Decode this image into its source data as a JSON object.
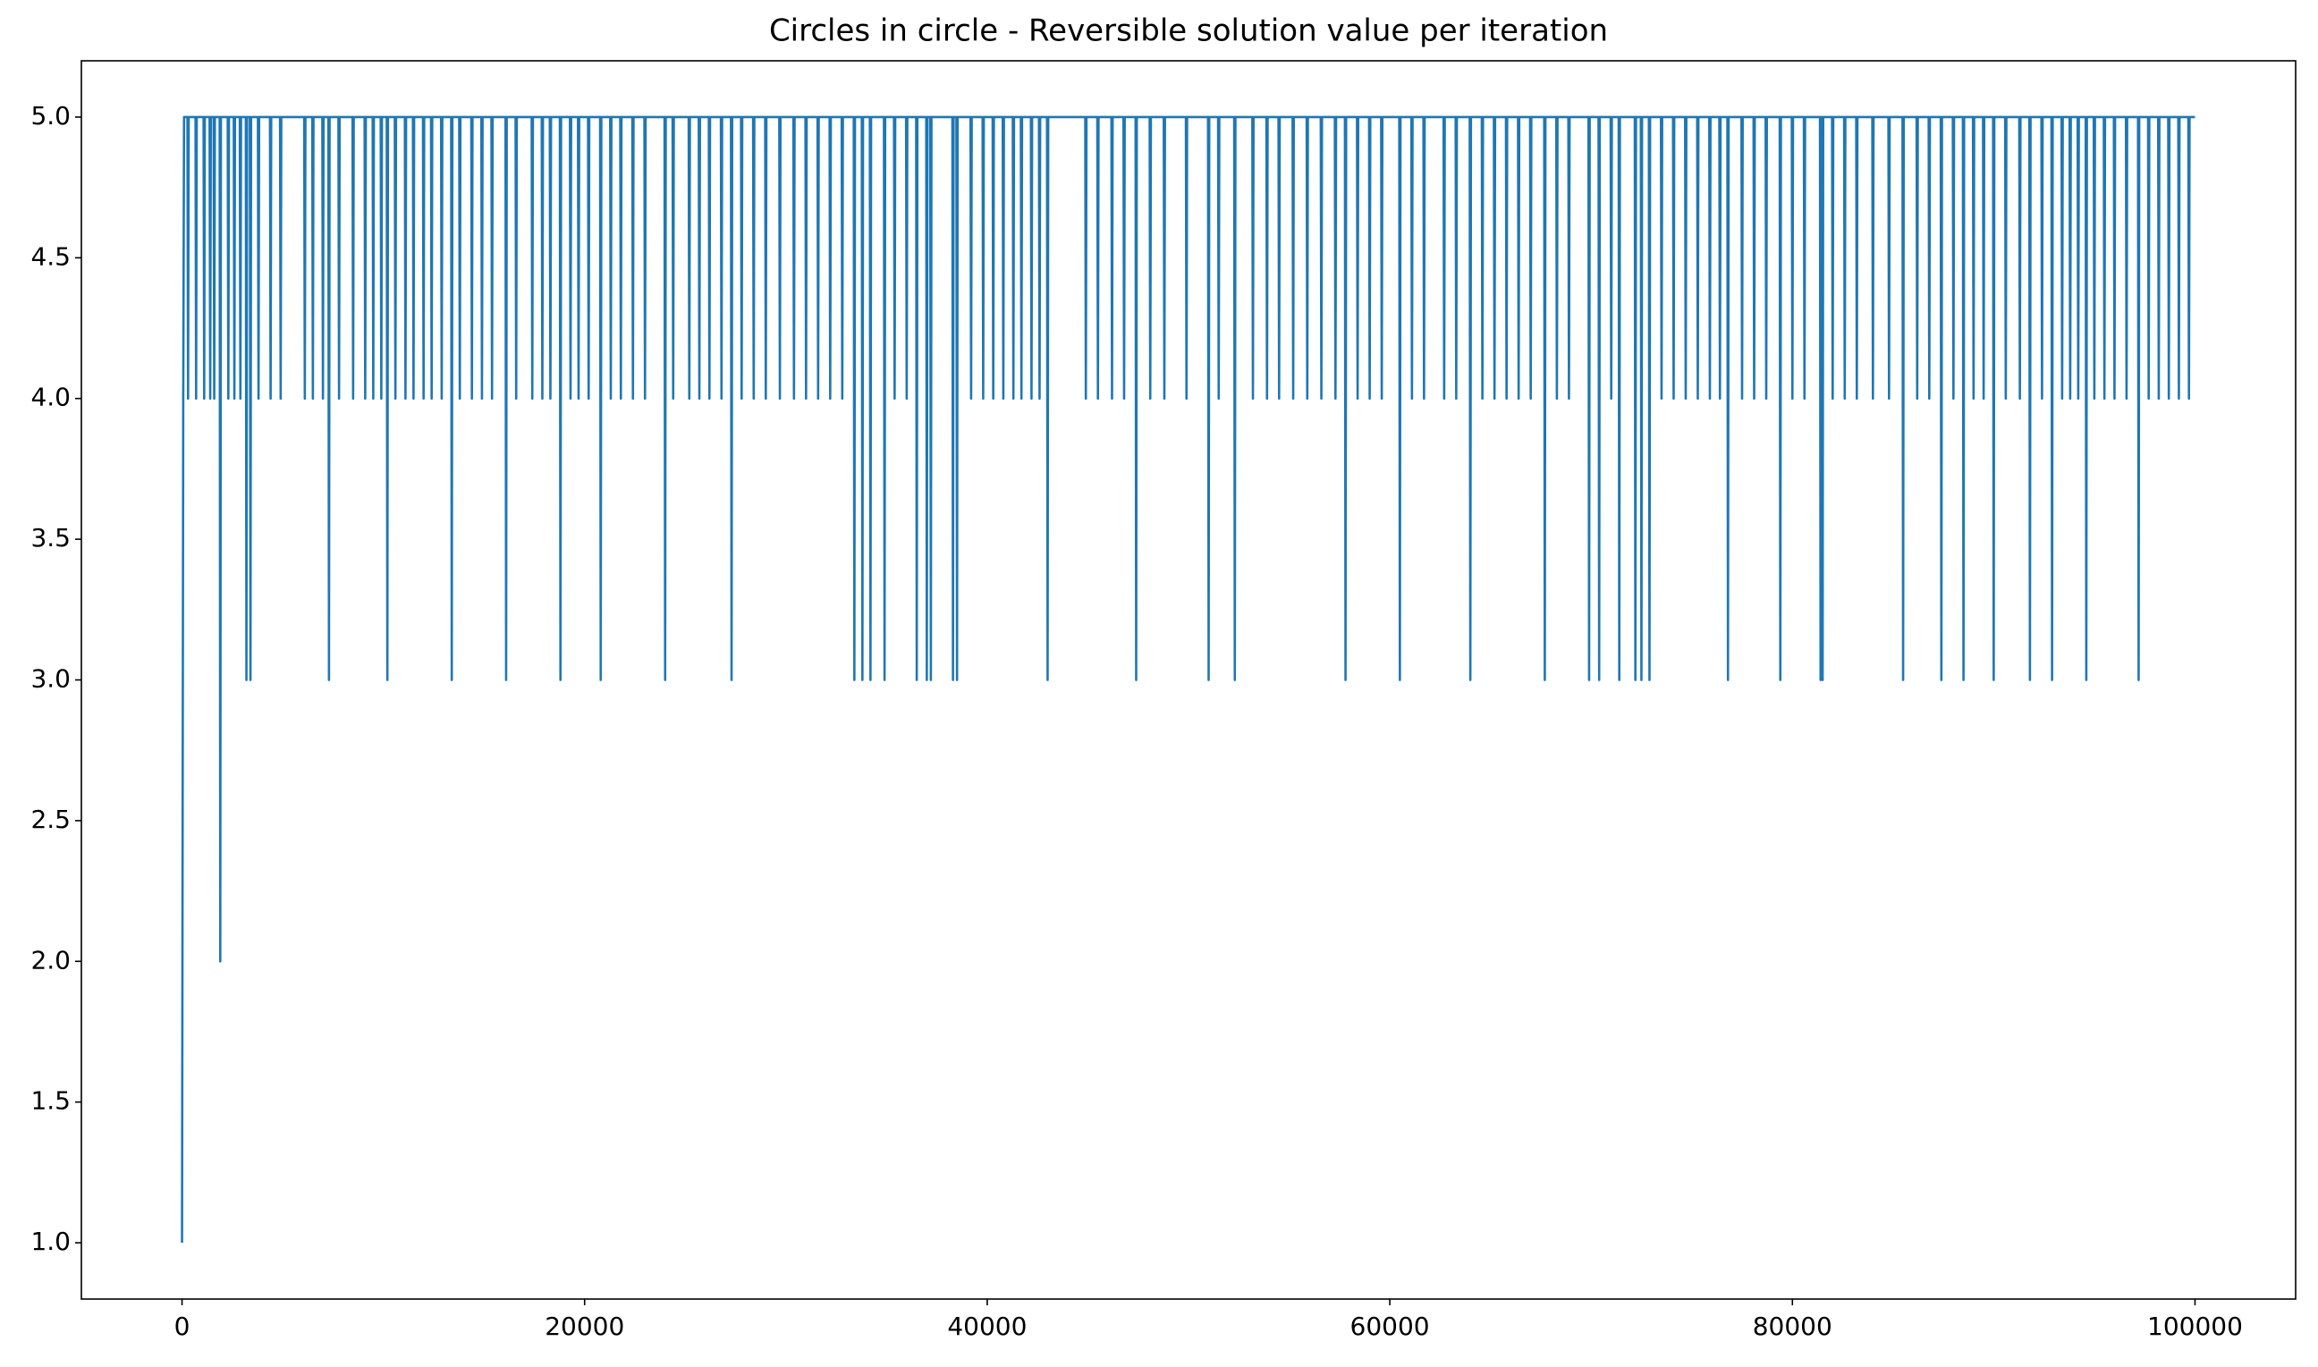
{
  "chart_data": {
    "type": "line",
    "title": "Circles in circle - Reversible solution value per iteration",
    "xlim": [
      -5000,
      105000
    ],
    "xticks": [
      0,
      20000,
      40000,
      60000,
      80000,
      100000
    ],
    "ylim": [
      0.8,
      5.2
    ],
    "yticks": [
      {
        "value": 1.0,
        "label": "1.0"
      },
      {
        "value": 1.5,
        "label": "1.5"
      },
      {
        "value": 2.0,
        "label": "2.0"
      },
      {
        "value": 2.5,
        "label": "2.5"
      },
      {
        "value": 3.0,
        "label": "3.0"
      },
      {
        "value": 3.5,
        "label": "3.5"
      },
      {
        "value": 4.0,
        "label": "4.0"
      },
      {
        "value": 4.5,
        "label": "4.5"
      },
      {
        "value": 5.0,
        "label": "5.0"
      }
    ],
    "grid": false,
    "x": [
      0,
      20,
      40,
      60,
      100,
      270,
      300,
      330,
      670,
      700,
      730,
      1070,
      1100,
      1130,
      1370,
      1400,
      1430,
      1570,
      1600,
      1630,
      1870,
      1900,
      1930,
      2270,
      2300,
      2330,
      2570,
      2600,
      2630,
      2870,
      2900,
      2930,
      3170,
      3200,
      3230,
      3370,
      3400,
      3430,
      3770,
      3800,
      3830,
      4370,
      4400,
      4430,
      4870,
      4900,
      4930,
      6070,
      6100,
      6130,
      6470,
      6500,
      6530,
      6970,
      7000,
      7030,
      7270,
      7300,
      7330,
      7770,
      7800,
      7830,
      8470,
      8500,
      8530,
      9070,
      9100,
      9130,
      9470,
      9500,
      9530,
      9870,
      9900,
      9930,
      10170,
      10200,
      10230,
      10570,
      10600,
      10630,
      11070,
      11100,
      11130,
      11470,
      11500,
      11530,
      11970,
      12000,
      12030,
      12370,
      12400,
      12430,
      12870,
      12900,
      12930,
      13370,
      13400,
      13430,
      13770,
      13800,
      13830,
      14370,
      14400,
      14430,
      14870,
      14900,
      14930,
      15370,
      15400,
      15430,
      16070,
      16100,
      16130,
      16570,
      16600,
      16630,
      17370,
      17400,
      17430,
      17870,
      17900,
      17930,
      18270,
      18300,
      18330,
      18770,
      18800,
      18830,
      19270,
      19300,
      19330,
      19670,
      19700,
      19730,
      20170,
      20200,
      20230,
      20770,
      20800,
      20830,
      21270,
      21300,
      21330,
      21770,
      21800,
      21830,
      22370,
      22400,
      22430,
      22970,
      23000,
      23030,
      23970,
      24000,
      24030,
      24370,
      24400,
      24430,
      25170,
      25200,
      25230,
      25670,
      25700,
      25730,
      26170,
      26200,
      26230,
      26770,
      26800,
      26830,
      27270,
      27300,
      27330,
      27770,
      27800,
      27830,
      28370,
      28400,
      28430,
      28970,
      29000,
      29030,
      29670,
      29700,
      29730,
      30370,
      30400,
      30430,
      30970,
      31000,
      31030,
      31570,
      31600,
      31630,
      32170,
      32200,
      32230,
      32770,
      32800,
      32830,
      33370,
      33400,
      33430,
      33770,
      33800,
      33830,
      34170,
      34200,
      34230,
      34870,
      34900,
      34930,
      35370,
      35400,
      35430,
      35970,
      36000,
      36030,
      36470,
      36500,
      36530,
      36970,
      37000,
      37030,
      37170,
      37200,
      37230,
      38270,
      38300,
      38330,
      38470,
      38500,
      38530,
      39170,
      39200,
      39230,
      39770,
      39800,
      39830,
      40270,
      40300,
      40330,
      40770,
      40800,
      40830,
      41270,
      41300,
      41330,
      41670,
      41700,
      41730,
      42170,
      42200,
      42230,
      42570,
      42600,
      42630,
      42970,
      43000,
      43030,
      44870,
      44900,
      44930,
      45470,
      45500,
      45530,
      46170,
      46200,
      46230,
      46770,
      46800,
      46830,
      47370,
      47400,
      47430,
      48070,
      48100,
      48130,
      48770,
      48800,
      48830,
      49870,
      49900,
      49930,
      50970,
      51000,
      51030,
      51470,
      51500,
      51530,
      52270,
      52300,
      52330,
      53170,
      53200,
      53230,
      53870,
      53900,
      53930,
      54470,
      54500,
      54530,
      55170,
      55200,
      55230,
      55870,
      55900,
      55930,
      56570,
      56600,
      56630,
      57270,
      57300,
      57330,
      57770,
      57800,
      57830,
      58370,
      58400,
      58430,
      58970,
      59000,
      59030,
      59570,
      59600,
      59630,
      60470,
      60500,
      60530,
      61070,
      61100,
      61130,
      61670,
      61700,
      61730,
      62670,
      62700,
      62730,
      63270,
      63300,
      63330,
      63970,
      64000,
      64030,
      64570,
      64600,
      64630,
      65170,
      65200,
      65230,
      65770,
      65800,
      65830,
      66370,
      66400,
      66430,
      66970,
      67000,
      67030,
      67670,
      67700,
      67730,
      68270,
      68300,
      68330,
      68870,
      68900,
      68930,
      69870,
      69900,
      69930,
      70370,
      70400,
      70430,
      70970,
      71000,
      71030,
      71370,
      71400,
      71430,
      72170,
      72200,
      72230,
      72470,
      72500,
      72530,
      72870,
      72900,
      72930,
      73470,
      73500,
      73530,
      74070,
      74100,
      74130,
      74670,
      74700,
      74730,
      75270,
      75300,
      75330,
      75870,
      75900,
      75930,
      76370,
      76400,
      76430,
      76770,
      76800,
      76830,
      77470,
      77500,
      77530,
      78070,
      78100,
      78130,
      78670,
      78700,
      78730,
      79370,
      79400,
      79430,
      79970,
      80000,
      80030,
      80570,
      80600,
      80630,
      81370,
      81400,
      81430,
      81470,
      81500,
      81530,
      81970,
      82000,
      82030,
      82570,
      82600,
      82630,
      83170,
      83200,
      83230,
      83970,
      84000,
      84030,
      84770,
      84800,
      84830,
      85470,
      85500,
      85530,
      86170,
      86200,
      86230,
      86770,
      86800,
      86830,
      87370,
      87400,
      87430,
      87970,
      88000,
      88030,
      88470,
      88500,
      88530,
      88970,
      89000,
      89030,
      89470,
      89500,
      89530,
      89970,
      90000,
      90030,
      90570,
      90600,
      90630,
      91270,
      91300,
      91330,
      91770,
      91800,
      91830,
      92370,
      92400,
      92430,
      92870,
      92900,
      92930,
      93370,
      93400,
      93430,
      93770,
      93800,
      93830,
      94170,
      94200,
      94230,
      94570,
      94600,
      94630,
      94970,
      95000,
      95030,
      95470,
      95500,
      95530,
      95970,
      96000,
      96030,
      96570,
      96600,
      96630,
      97170,
      97200,
      97230,
      97670,
      97700,
      97730,
      98170,
      98200,
      98230,
      98670,
      98700,
      98730,
      99170,
      99200,
      99230,
      99670,
      99700,
      99730,
      100000
    ],
    "series": [
      {
        "name": "value",
        "color": "#1f77b4",
        "values": [
          1,
          2,
          3,
          4,
          5,
          5,
          4,
          5,
          5,
          4,
          5,
          5,
          4,
          5,
          5,
          4,
          5,
          5,
          4,
          5,
          5,
          2,
          5,
          5,
          4,
          5,
          5,
          4,
          5,
          5,
          4,
          5,
          5,
          3,
          5,
          5,
          3,
          5,
          5,
          4,
          5,
          5,
          4,
          5,
          5,
          4,
          5,
          5,
          4,
          5,
          5,
          4,
          5,
          5,
          4,
          5,
          5,
          3,
          5,
          5,
          4,
          5,
          5,
          4,
          5,
          5,
          4,
          5,
          5,
          4,
          5,
          5,
          4,
          5,
          5,
          3,
          5,
          5,
          4,
          5,
          5,
          4,
          5,
          5,
          4,
          5,
          5,
          4,
          5,
          5,
          4,
          5,
          5,
          4,
          5,
          5,
          3,
          5,
          5,
          4,
          5,
          5,
          4,
          5,
          5,
          4,
          5,
          5,
          4,
          5,
          5,
          3,
          5,
          5,
          4,
          5,
          5,
          4,
          5,
          5,
          4,
          5,
          5,
          4,
          5,
          5,
          3,
          5,
          5,
          4,
          5,
          5,
          4,
          5,
          5,
          4,
          5,
          5,
          3,
          5,
          5,
          4,
          5,
          5,
          4,
          5,
          5,
          4,
          5,
          5,
          4,
          5,
          5,
          3,
          5,
          5,
          4,
          5,
          5,
          4,
          5,
          5,
          4,
          5,
          5,
          4,
          5,
          5,
          4,
          5,
          5,
          3,
          5,
          5,
          4,
          5,
          5,
          4,
          5,
          5,
          4,
          5,
          5,
          4,
          5,
          5,
          4,
          5,
          5,
          4,
          5,
          5,
          4,
          5,
          5,
          4,
          5,
          5,
          4,
          5,
          5,
          3,
          5,
          5,
          3,
          5,
          5,
          3,
          5,
          5,
          3,
          5,
          5,
          4,
          5,
          5,
          4,
          5,
          5,
          3,
          5,
          5,
          3,
          5,
          5,
          3,
          5,
          5,
          3,
          5,
          5,
          3,
          5,
          5,
          4,
          5,
          5,
          4,
          5,
          5,
          4,
          5,
          5,
          4,
          5,
          5,
          4,
          5,
          5,
          4,
          5,
          5,
          4,
          5,
          5,
          4,
          5,
          5,
          3,
          5,
          5,
          4,
          5,
          5,
          4,
          5,
          5,
          4,
          5,
          5,
          4,
          5,
          5,
          3,
          5,
          5,
          4,
          5,
          5,
          4,
          5,
          5,
          4,
          5,
          5,
          3,
          5,
          5,
          4,
          5,
          5,
          3,
          5,
          5,
          4,
          5,
          5,
          4,
          5,
          5,
          4,
          5,
          5,
          4,
          5,
          5,
          4,
          5,
          5,
          4,
          5,
          5,
          4,
          5,
          5,
          3,
          5,
          5,
          4,
          5,
          5,
          4,
          5,
          5,
          4,
          5,
          5,
          3,
          5,
          5,
          4,
          5,
          5,
          4,
          5,
          5,
          4,
          5,
          5,
          4,
          5,
          5,
          3,
          5,
          5,
          4,
          5,
          5,
          4,
          5,
          5,
          4,
          5,
          5,
          4,
          5,
          5,
          4,
          5,
          5,
          3,
          5,
          5,
          4,
          5,
          5,
          4,
          5,
          5,
          3,
          5,
          5,
          3,
          5,
          5,
          4,
          5,
          5,
          3,
          5,
          5,
          3,
          5,
          5,
          3,
          5,
          5,
          3,
          5,
          5,
          4,
          5,
          5,
          4,
          5,
          5,
          4,
          5,
          5,
          4,
          5,
          5,
          4,
          5,
          5,
          4,
          5,
          5,
          3,
          5,
          5,
          4,
          5,
          5,
          4,
          5,
          5,
          4,
          5,
          5,
          3,
          5,
          5,
          4,
          5,
          5,
          4,
          5,
          5,
          3,
          5,
          5,
          3,
          5,
          5,
          4,
          5,
          5,
          4,
          5,
          5,
          4,
          5,
          5,
          4,
          5,
          5,
          4,
          5,
          5,
          3,
          5,
          5,
          4,
          5,
          5,
          4,
          5,
          5,
          3,
          5,
          5,
          4,
          5,
          5,
          3,
          5,
          5,
          4,
          5,
          5,
          4,
          5,
          5,
          3,
          5,
          5,
          4,
          5,
          5,
          4,
          5,
          5,
          3,
          5,
          5,
          4,
          5,
          5,
          3,
          5,
          5,
          4,
          5,
          5,
          4,
          5,
          5,
          4,
          5,
          5,
          3,
          5,
          5,
          4,
          5,
          5,
          4,
          5,
          5,
          4,
          5,
          5,
          4,
          5,
          5,
          3,
          5,
          5,
          4,
          5,
          5,
          4,
          5,
          5,
          4,
          5,
          5,
          4,
          5,
          5,
          4,
          5,
          5
        ]
      }
    ]
  }
}
